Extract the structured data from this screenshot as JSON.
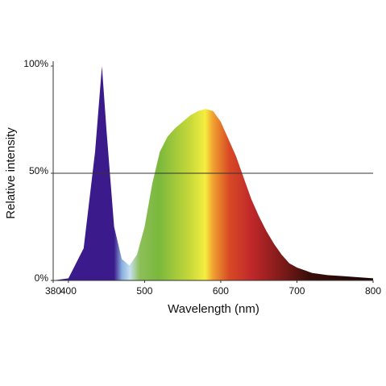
{
  "chart_data": {
    "type": "area",
    "x_label": "Wavelength (nm)",
    "y_label": "Relative intensity",
    "x": [
      380,
      400,
      420,
      435,
      444,
      450,
      460,
      470,
      480,
      490,
      500,
      510,
      520,
      530,
      540,
      550,
      560,
      570,
      580,
      590,
      600,
      610,
      620,
      630,
      640,
      650,
      660,
      670,
      680,
      690,
      700,
      720,
      740,
      760,
      780,
      800
    ],
    "values": [
      0,
      1,
      15,
      60,
      100,
      70,
      25,
      10,
      7,
      12,
      25,
      45,
      60,
      67,
      71,
      74,
      77,
      79,
      80,
      79,
      74,
      66,
      58,
      48,
      38,
      30,
      23,
      17,
      12,
      8,
      6,
      3.5,
      2.5,
      2,
      1.5,
      1
    ],
    "xlim": [
      380,
      800
    ],
    "ylim": [
      0,
      100
    ],
    "xticks": [
      380,
      400,
      500,
      600,
      700,
      800
    ],
    "yticks": [
      {
        "value": 0,
        "label": "0%"
      },
      {
        "value": 50,
        "label": "50%"
      },
      {
        "value": 100,
        "label": "100%"
      }
    ],
    "reference_line": 50,
    "line_color": "#333333"
  }
}
